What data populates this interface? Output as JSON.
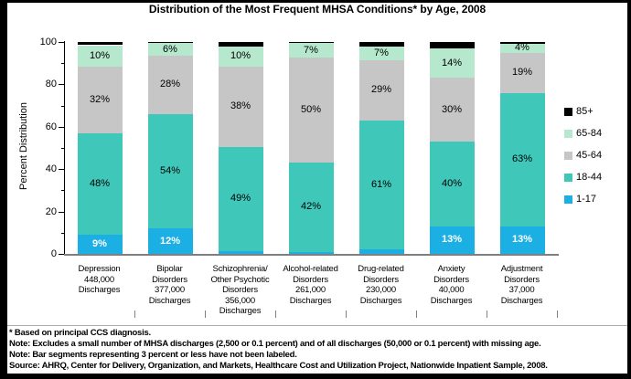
{
  "chart_data": {
    "type": "bar",
    "stacking": "percent",
    "title": "Distribution of the Most Frequent MHSA Conditions* by Age, 2008",
    "ylabel": "Percent Distribution",
    "ylim": [
      0,
      100
    ],
    "yticks": [
      0,
      20,
      40,
      60,
      80,
      100
    ],
    "minor_yticks": [
      10,
      30,
      50,
      70,
      90
    ],
    "grid": false,
    "legend_position": "right",
    "age_groups_bottom_to_top": [
      "1-17",
      "18-44",
      "45-64",
      "65-84",
      "85+"
    ],
    "colors": {
      "1-17": "#1cafe4",
      "18-44": "#3fc8ba",
      "45-64": "#c6c6c6",
      "65-84": "#b5e8cd",
      "85+": "#000000",
      "axis_line": "#7f7f7f",
      "text": "#000000"
    },
    "legend": [
      {
        "key": "85+",
        "label": "85+"
      },
      {
        "key": "65-84",
        "label": "65-84"
      },
      {
        "key": "45-64",
        "label": "45-64"
      },
      {
        "key": "18-44",
        "label": "18-44"
      },
      {
        "key": "1-17",
        "label": "1-17"
      }
    ],
    "categories": [
      {
        "condition": "Depression",
        "discharges": "448,000",
        "name_lines": [
          "Depression",
          "448,000",
          "Discharges"
        ],
        "values": [
          9,
          48,
          31.5,
          10,
          1.5
        ],
        "labels": [
          "9%",
          "48%",
          "32%",
          "10%",
          ""
        ]
      },
      {
        "condition": "Bipolar Disorders",
        "discharges": "377,000",
        "name_lines": [
          "Bipolar",
          "Disorders",
          "377,000",
          "Discharges"
        ],
        "values": [
          12,
          54,
          27.5,
          6,
          0.5
        ],
        "labels": [
          "12%",
          "54%",
          "28%",
          "6%",
          ""
        ]
      },
      {
        "condition": "Schizophrenia/Other Psychotic Disorders",
        "discharges": "356,000",
        "name_lines": [
          "Schizophrenia/",
          "Other Psychotic",
          "Disorders",
          "356,000",
          "Discharges"
        ],
        "values": [
          1.5,
          49,
          38,
          9.5,
          2
        ],
        "labels": [
          "",
          "49%",
          "38%",
          "10%",
          ""
        ]
      },
      {
        "condition": "Alcohol-related Disorders",
        "discharges": "261,000",
        "name_lines": [
          "Alcohol-related",
          "Disorders",
          "261,000",
          "Discharges"
        ],
        "values": [
          1,
          42,
          49.5,
          7,
          0.5
        ],
        "labels": [
          "",
          "42%",
          "50%",
          "7%",
          ""
        ]
      },
      {
        "condition": "Drug-related Disorders",
        "discharges": "230,000",
        "name_lines": [
          "Drug-related",
          "Disorders",
          "230,000",
          "Discharges"
        ],
        "values": [
          2,
          61,
          28.5,
          6.5,
          2
        ],
        "labels": [
          "",
          "61%",
          "29%",
          "7%",
          ""
        ]
      },
      {
        "condition": "Anxiety Disorders",
        "discharges": "40,000",
        "name_lines": [
          "Anxiety",
          "Disorders",
          "40,000",
          "Discharges"
        ],
        "values": [
          13,
          40,
          30,
          14,
          3
        ],
        "labels": [
          "13%",
          "40%",
          "30%",
          "14%",
          ""
        ]
      },
      {
        "condition": "Adjustment Disorders",
        "discharges": "37,000",
        "name_lines": [
          "Adjustment",
          "Disorders",
          "37,000",
          "Discharges"
        ],
        "values": [
          13,
          63,
          19,
          4,
          1
        ],
        "labels": [
          "13%",
          "63%",
          "19%",
          "4%",
          ""
        ]
      }
    ]
  },
  "notes": {
    "line1": "* Based on principal CCS diagnosis.",
    "line2": "Note:  Excludes a small number of MHSA discharges (2,500 or 0.1 percent) and of all discharges (50,000 or 0.1 percent) with missing age.",
    "line3": "Note: Bar segments representing 3 percent or less have not been labeled.",
    "line4": "Source: AHRQ, Center for Delivery, Organization, and Markets, Healthcare Cost and  Utilization Project, Nationwide Inpatient Sample, 2008."
  }
}
